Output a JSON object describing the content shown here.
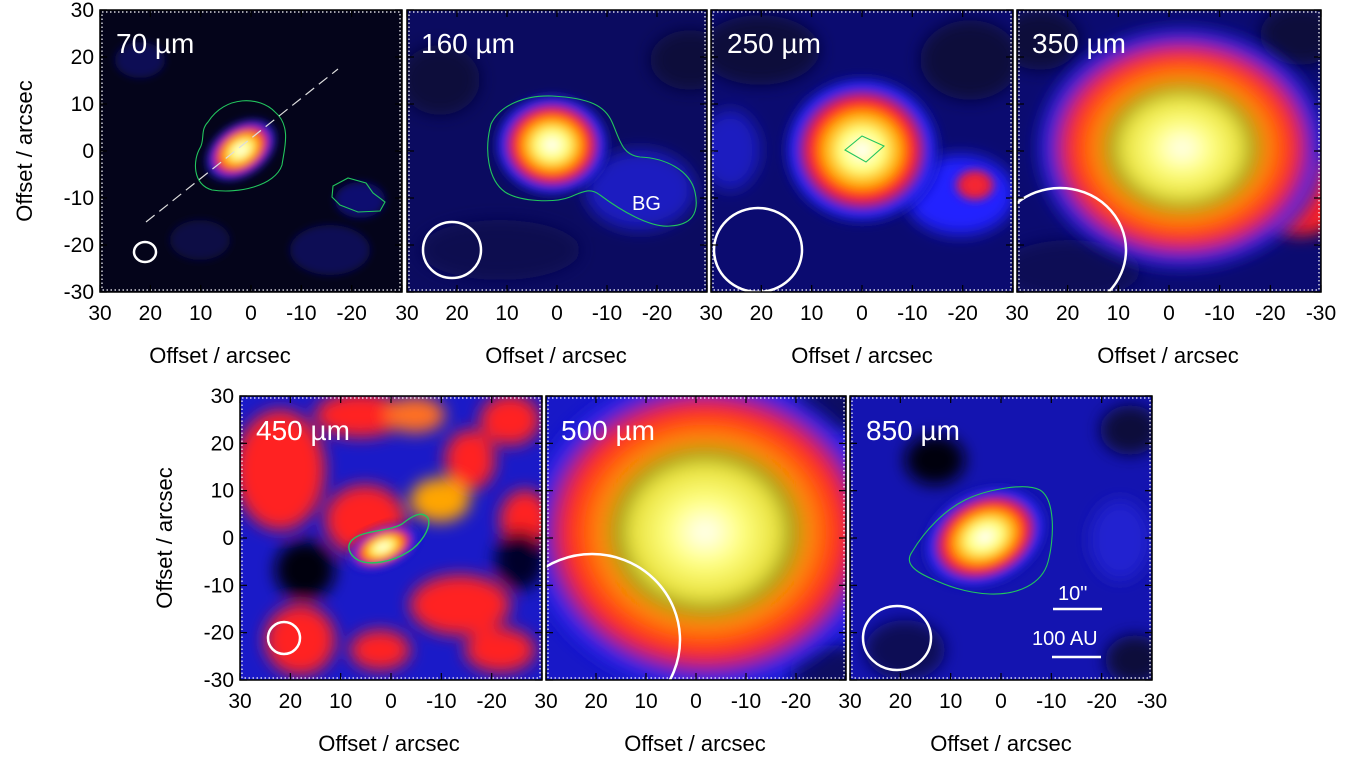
{
  "axis_label": "Offset / arcsec",
  "y_ticks": [
    "30",
    "20",
    "10",
    "0",
    "-10",
    "-20",
    "-30"
  ],
  "x_ticks_shared": [
    "30",
    "20",
    "10",
    "0",
    "-10",
    "-20"
  ],
  "x_ticks_last": [
    "30",
    "20",
    "10",
    "0",
    "-10",
    "-20",
    "-30"
  ],
  "panels": [
    {
      "id": "p70",
      "wavelength": "70 µm",
      "beam_fwhm_arcsec": 6,
      "contour": "green",
      "has_axis_line": true
    },
    {
      "id": "p160",
      "wavelength": "160 µm",
      "beam_fwhm_arcsec": 12,
      "contour": "green",
      "extra_label": "BG"
    },
    {
      "id": "p250",
      "wavelength": "250 µm",
      "beam_fwhm_arcsec": 18,
      "contour": "green"
    },
    {
      "id": "p350",
      "wavelength": "350 µm",
      "beam_fwhm_arcsec": 25
    },
    {
      "id": "p450",
      "wavelength": "450 µm",
      "beam_fwhm_arcsec": 8,
      "contour": "green"
    },
    {
      "id": "p500",
      "wavelength": "500 µm",
      "beam_fwhm_arcsec": 36
    },
    {
      "id": "p850",
      "wavelength": "850 µm",
      "beam_fwhm_arcsec": 14,
      "contour": "green",
      "scalebar_angle": "10\"",
      "scalebar_length": "100 AU"
    }
  ],
  "colors": {
    "colormap": [
      "#000000",
      "#0b0b80",
      "#2626ff",
      "#ff2020",
      "#ffa500",
      "#9b9b1a",
      "#ffff80",
      "#ffffff"
    ],
    "contour": "#22c55e",
    "overlay": "#ffffff"
  }
}
